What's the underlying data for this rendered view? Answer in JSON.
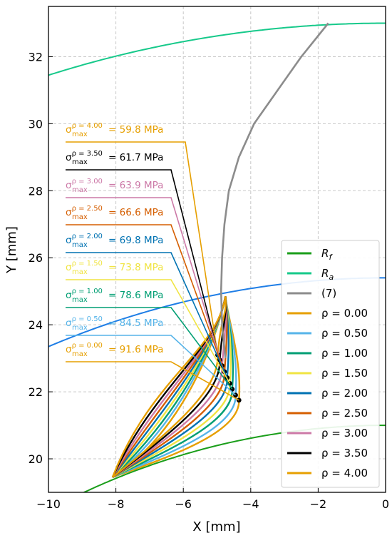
{
  "chart_data": {
    "type": "line",
    "title": "",
    "xlabel": "X [mm]",
    "ylabel": "Y [mm]",
    "xlim": [
      -10,
      0
    ],
    "ylim": [
      19,
      33.5
    ],
    "xticks": [
      "−10",
      "−8",
      "−6",
      "−4",
      "−2",
      "0"
    ],
    "yticks": [
      "20",
      "22",
      "24",
      "26",
      "28",
      "30",
      "32"
    ],
    "grid": true,
    "legend_position": "lower-right",
    "colors": {
      "Rf": "#1a9e1a",
      "Ra": "#16c98a",
      "eq7": "#8c8c8c",
      "rho": [
        "#e69f00",
        "#56b4e9",
        "#009e73",
        "#f0e442",
        "#0072b2",
        "#d55e00",
        "#cc79a7",
        "#000000",
        "#e69f00"
      ]
    },
    "legend": [
      {
        "key": "Rf",
        "label": "R",
        "sub": "f"
      },
      {
        "key": "Ra",
        "label": "R",
        "sub": "a"
      },
      {
        "key": "eq7",
        "label": "(7)",
        "sub": ""
      },
      {
        "key": "rho0",
        "label": "ρ = 0.00",
        "sub": ""
      },
      {
        "key": "rho1",
        "label": "ρ = 0.50",
        "sub": ""
      },
      {
        "key": "rho2",
        "label": "ρ = 1.00",
        "sub": ""
      },
      {
        "key": "rho3",
        "label": "ρ = 1.50",
        "sub": ""
      },
      {
        "key": "rho4",
        "label": "ρ = 2.00",
        "sub": ""
      },
      {
        "key": "rho5",
        "label": "ρ = 2.50",
        "sub": ""
      },
      {
        "key": "rho6",
        "label": "ρ = 3.00",
        "sub": ""
      },
      {
        "key": "rho7",
        "label": "ρ = 3.50",
        "sub": ""
      },
      {
        "key": "rho8",
        "label": "ρ = 4.00",
        "sub": ""
      }
    ],
    "annotations": [
      {
        "rho": "4.00",
        "value": "= 59.8 MPa",
        "sigma": "σ",
        "sub": "max",
        "sup": "ρ = 4.00"
      },
      {
        "rho": "3.50",
        "value": "= 61.7 MPa",
        "sigma": "σ",
        "sub": "max",
        "sup": "ρ = 3.50"
      },
      {
        "rho": "3.00",
        "value": "= 63.9 MPa",
        "sigma": "σ",
        "sub": "max",
        "sup": "ρ = 3.00"
      },
      {
        "rho": "2.50",
        "value": "= 66.6 MPa",
        "sigma": "σ",
        "sub": "max",
        "sup": "ρ = 2.50"
      },
      {
        "rho": "2.00",
        "value": "= 69.8 MPa",
        "sigma": "σ",
        "sub": "max",
        "sup": "ρ = 2.00"
      },
      {
        "rho": "1.50",
        "value": "= 73.8 MPa",
        "sigma": "σ",
        "sub": "max",
        "sup": "ρ = 1.50"
      },
      {
        "rho": "1.00",
        "value": "= 78.6 MPa",
        "sigma": "σ",
        "sub": "max",
        "sup": "ρ = 1.00"
      },
      {
        "rho": "0.50",
        "value": "= 84.5 MPa",
        "sigma": "σ",
        "sub": "max",
        "sup": "ρ = 0.50"
      },
      {
        "rho": "0.00",
        "value": "= 91.6 MPa",
        "sigma": "σ",
        "sub": "max",
        "sup": "ρ = 0.00"
      }
    ],
    "series": [
      {
        "name": "R_f",
        "kind": "circle",
        "cx": 0,
        "cy": 0,
        "r": 21.0,
        "x_from": -10,
        "x_to": 0
      },
      {
        "name": "R_a",
        "kind": "circle",
        "cx": 0,
        "cy": 0,
        "r": 33.0,
        "x_from": -10,
        "x_to": 0
      },
      {
        "name": "pitch",
        "kind": "circle",
        "cx": 0,
        "cy": 0,
        "r": 25.4,
        "x_from": -10,
        "x_to": 0
      },
      {
        "name": "(7)",
        "kind": "curve",
        "x": [
          -4.75,
          -4.85,
          -4.88,
          -4.85,
          -4.78,
          -4.65,
          -4.35,
          -3.9,
          -3.2,
          -2.5,
          -1.7
        ],
        "y": [
          23.0,
          24.0,
          25.0,
          26.0,
          27.0,
          28.0,
          29.0,
          30.0,
          31.0,
          32.0,
          33.0
        ]
      },
      {
        "name": "ρ = 0.00",
        "root_x": -4.35,
        "root_y": 21.75
      },
      {
        "name": "ρ = 0.50",
        "root_x": -4.45,
        "root_y": 21.9
      },
      {
        "name": "ρ = 1.00",
        "root_x": -4.55,
        "root_y": 22.08
      },
      {
        "name": "ρ = 1.50",
        "root_x": -4.62,
        "root_y": 22.25
      },
      {
        "name": "ρ = 2.00",
        "root_x": -4.7,
        "root_y": 22.42
      },
      {
        "name": "ρ = 2.50",
        "root_x": -4.78,
        "root_y": 22.6
      },
      {
        "name": "ρ = 3.00",
        "root_x": -4.85,
        "root_y": 22.78
      },
      {
        "name": "ρ = 3.50",
        "root_x": -4.92,
        "root_y": 22.95
      },
      {
        "name": "ρ = 4.00",
        "root_x": -4.98,
        "root_y": 23.1
      }
    ]
  }
}
